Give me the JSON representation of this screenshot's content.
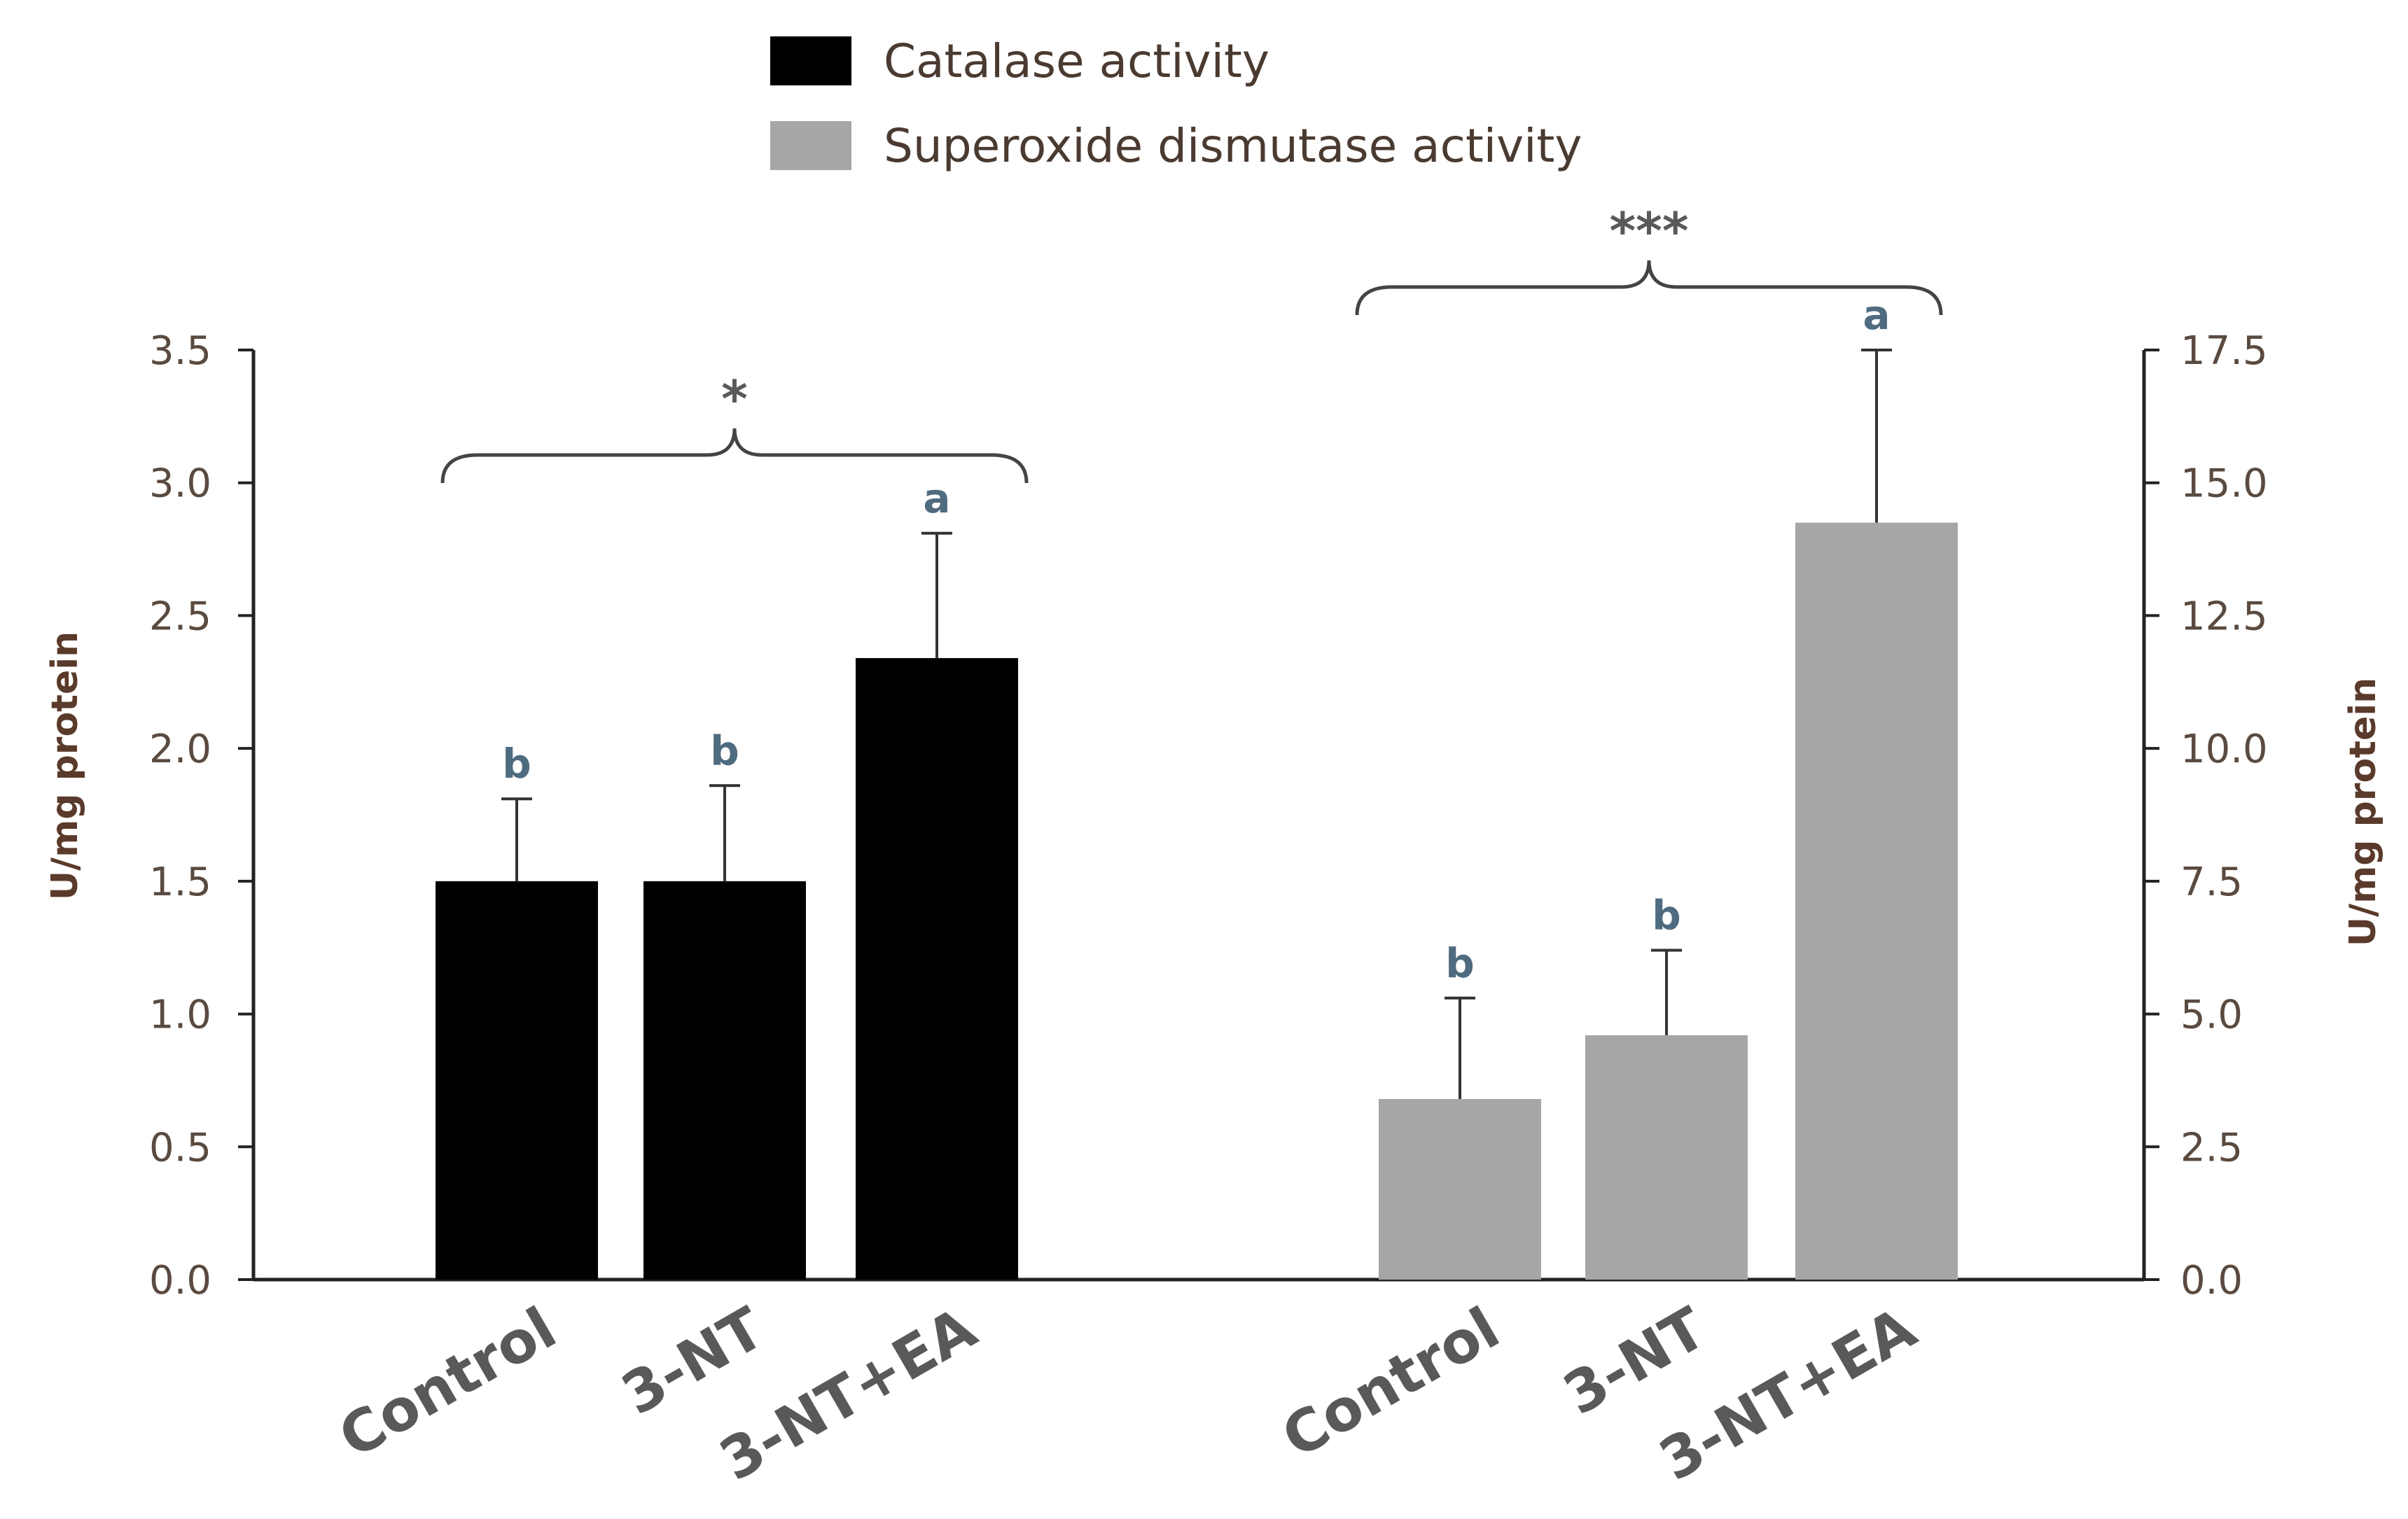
{
  "chart_data": {
    "type": "bar",
    "legend": [
      {
        "name": "Catalase activity",
        "color": "#000000"
      },
      {
        "name": "Superoxide dismutase activity",
        "color": "#a6a6a6"
      }
    ],
    "left_axis": {
      "label": "U/mg protein",
      "ylim": [
        0,
        3.5
      ],
      "ticks": [
        "0.0",
        "0.5",
        "1.0",
        "1.5",
        "2.0",
        "2.5",
        "3.0",
        "3.5"
      ]
    },
    "right_axis": {
      "label": "U/mg protein",
      "ylim": [
        0,
        17.5
      ],
      "ticks": [
        "0.0",
        "2.5",
        "5.0",
        "7.5",
        "10.0",
        "12.5",
        "15.0",
        "17.5"
      ]
    },
    "series": [
      {
        "name": "Catalase activity",
        "axis": "left",
        "color": "#000000",
        "categories": [
          "Control",
          "3-NT",
          "3-NT+EA"
        ],
        "values": [
          1.5,
          1.5,
          2.34
        ],
        "errors": [
          0.31,
          0.36,
          0.47
        ],
        "letters": [
          "b",
          "b",
          "a"
        ],
        "significance": "*"
      },
      {
        "name": "Superoxide dismutase activity",
        "axis": "right",
        "color": "#a6a6a6",
        "categories": [
          "Control",
          "3-NT",
          "3-NT+EA"
        ],
        "values": [
          3.4,
          4.6,
          14.25
        ],
        "errors": [
          1.9,
          1.6,
          3.25
        ],
        "letters": [
          "b",
          "b",
          "a"
        ],
        "significance": "***"
      }
    ]
  }
}
